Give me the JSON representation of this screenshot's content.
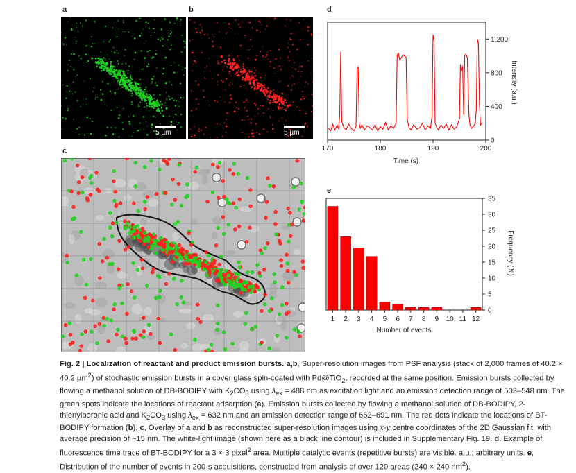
{
  "panels": {
    "a": {
      "label": "a",
      "scale": "5 µm",
      "spot_color": "#1fd11f"
    },
    "b": {
      "label": "b",
      "scale": "5 µm",
      "spot_color": "#ff2020"
    },
    "c": {
      "label": "c"
    },
    "d": {
      "label": "d"
    },
    "e": {
      "label": "e"
    }
  },
  "chart_data": [
    {
      "panel": "d",
      "type": "line",
      "xlabel": "Time (s)",
      "ylabel": "Intensity (a.u.)",
      "xlim": [
        170,
        200
      ],
      "ylim": [
        0,
        1400
      ],
      "xticks": [
        170,
        180,
        190,
        200
      ],
      "yticks": [
        0,
        400,
        800,
        1200
      ],
      "ytick_labels": [
        "0",
        "400",
        "800",
        "1,200"
      ],
      "color": "#ff0000",
      "series": [
        {
          "x": [
            170,
            170.6,
            171,
            171.4,
            171.8,
            172.1,
            172.3,
            172.5,
            172.7,
            173,
            173.5,
            174,
            174.5,
            175,
            175.4,
            175.6,
            175.8,
            176,
            176.2,
            176.5,
            177,
            177.5,
            178,
            178.5,
            179,
            179.5,
            180,
            180.5,
            181,
            181.5,
            182,
            182.5,
            183,
            183.2,
            183.4,
            183.7,
            184,
            184.3,
            184.6,
            184.9,
            185.1,
            185.4,
            185.8,
            186.3,
            187,
            187.5,
            188,
            188.5,
            189,
            189.5,
            189.8,
            190,
            190.2,
            190.4,
            190.7,
            191,
            191.5,
            192,
            192.5,
            193,
            193.5,
            194,
            194.5,
            195,
            195.2,
            195.4,
            195.6,
            195.8,
            196,
            196.2,
            196.5,
            196.8,
            197,
            197.3,
            197.6,
            198,
            198.2,
            198.4,
            198.6,
            198.8,
            199,
            199.3
          ],
          "y": [
            150,
            110,
            190,
            120,
            180,
            130,
            300,
            1050,
            220,
            160,
            120,
            190,
            140,
            110,
            160,
            850,
            870,
            200,
            140,
            180,
            120,
            170,
            150,
            120,
            180,
            110,
            160,
            130,
            210,
            120,
            170,
            140,
            200,
            1000,
            1040,
            950,
            980,
            1010,
            1000,
            980,
            250,
            160,
            120,
            180,
            130,
            150,
            200,
            120,
            170,
            140,
            280,
            1250,
            1180,
            200,
            150,
            120,
            180,
            140,
            190,
            120,
            180,
            130,
            160,
            250,
            900,
            820,
            880,
            300,
            1000,
            1020,
            980,
            300,
            180,
            140,
            160,
            200,
            350,
            1200,
            1150,
            420,
            180,
            200
          ]
        }
      ]
    },
    {
      "panel": "e",
      "type": "bar",
      "xlabel": "Number of events",
      "ylabel": "Frequency (%)",
      "ylim": [
        0,
        35
      ],
      "yticks": [
        0,
        5,
        10,
        15,
        20,
        25,
        30,
        35
      ],
      "color": "#ff0000",
      "categories": [
        "1",
        "2",
        "3",
        "4",
        "5",
        "6",
        "7",
        "8",
        "9",
        "10",
        "11",
        "12"
      ],
      "values": [
        32.5,
        23,
        19.5,
        16.8,
        2.5,
        1.8,
        0.8,
        0.8,
        0.8,
        0,
        0,
        0.8
      ]
    }
  ],
  "caption": {
    "fig": "Fig. 2 |",
    "title": "Localization of reactant and product emission bursts.",
    "ab": "a,b",
    "t1": ", Super-resolution images from PSF analysis (stack of 2,000 frames of 40.2 × 40.2 µm",
    "sup2": "2",
    "t2": ") of stochastic emission bursts in a cover glass spin-coated with Pd@TiO",
    "sub2": "2",
    "t3": ", recorded at the same position. Emission bursts collected by flowing a methanol solution of DB-BODIPY with K",
    "k2": "2",
    "t4": "CO",
    "co3": "3",
    "t5": " using ",
    "lam": "λ",
    "ex": "ex",
    "t6": " = 488 nm as excitation light and an emission detection range of 503–548 nm. The green spots indicate the locations of reactant adsorption (",
    "a": "a",
    "t7": "). Emission bursts collected by flowing a methanol solution of DB-BODIPY, 2-thienylboronic acid and K",
    "k2b": "2",
    "t8": "CO",
    "co3b": "3",
    "t9": " using ",
    "lam2": "λ",
    "ex2": "ex",
    "t10": " = 632 nm and an emission detection range of 662–691 nm. The red dots indicate the locations of BT-BODIPY formation (",
    "b": "b",
    "t11": "). ",
    "c": "c",
    "t12": ", Overlay of ",
    "a2": "a",
    "t13": " and ",
    "b2": "b",
    "t14": " as reconstructed super-resolution images using ",
    "x": "x",
    "t15": "-",
    "y": "y",
    "t16": " centre coordinates of the 2D Gaussian fit, with average precision of ~15 nm. The white-light image (shown here as a black line contour) is included in Supplementary Fig. 19. ",
    "d": "d",
    "t17": ", Example of fluorescence time trace of BT-BODIPY for a 3 × 3 pixel",
    "sup2b": "2",
    "t18": " area. Multiple catalytic events (repetitive bursts) are visible. a.u., arbitrary units. ",
    "e": "e",
    "t19": ", Distribution of the number of events in 200-s acquisitions, constructed from analysis of over 120 areas (240 × 240 nm",
    "sup2c": "2",
    "t20": ")."
  }
}
